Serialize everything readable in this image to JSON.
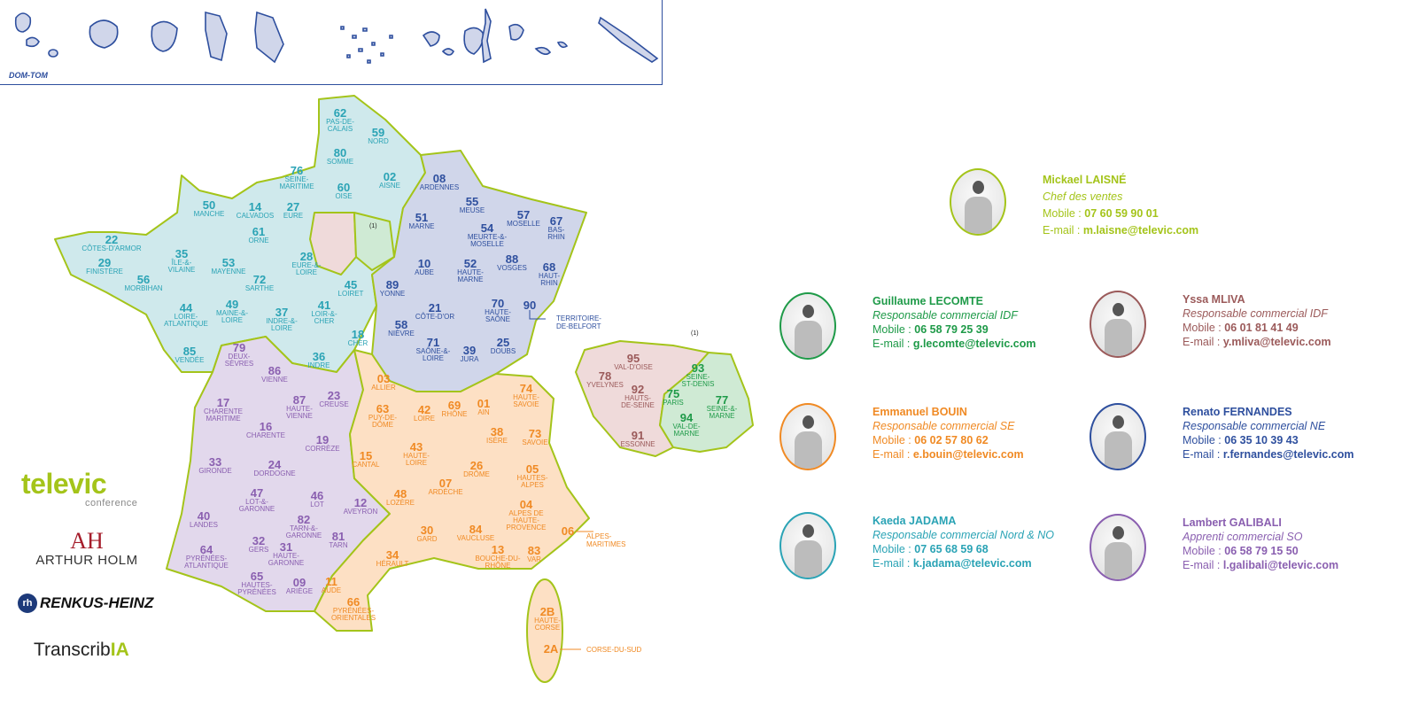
{
  "domtom": {
    "label": "DOM-TOM"
  },
  "colors": {
    "chef": "#a4c41a",
    "nord_no": "#2aa3b5",
    "ne": "#2e4f9e",
    "se": "#f08a24",
    "so": "#8a5fb0",
    "idf_green": "#1e9a48",
    "idf_mauve": "#9b5a5a"
  },
  "map": {
    "note_marker": "(1)",
    "annotations": {
      "belfort": "TERRITOIRE-\nDE-BELFORT",
      "alpes_maritimes": "ALPES-\nMARITIMES",
      "corse_du_sud": "CORSE-DU-SUD"
    },
    "departments": [
      {
        "num": "62",
        "name": "PAS-DE-\nCALAIS",
        "zone": "nord_no"
      },
      {
        "num": "59",
        "name": "NORD",
        "zone": "nord_no"
      },
      {
        "num": "80",
        "name": "SOMME",
        "zone": "nord_no"
      },
      {
        "num": "02",
        "name": "AISNE",
        "zone": "nord_no"
      },
      {
        "num": "60",
        "name": "OISE",
        "zone": "nord_no"
      },
      {
        "num": "76",
        "name": "SEINE-\nMARITIME",
        "zone": "nord_no"
      },
      {
        "num": "50",
        "name": "MANCHE",
        "zone": "nord_no"
      },
      {
        "num": "14",
        "name": "CALVADOS",
        "zone": "nord_no"
      },
      {
        "num": "27",
        "name": "EURE",
        "zone": "nord_no"
      },
      {
        "num": "61",
        "name": "ORNE",
        "zone": "nord_no"
      },
      {
        "num": "22",
        "name": "CÔTES-D'ARMOR",
        "zone": "nord_no"
      },
      {
        "num": "29",
        "name": "FINISTÈRE",
        "zone": "nord_no"
      },
      {
        "num": "35",
        "name": "ÎLE-&-\nVILAINE",
        "zone": "nord_no"
      },
      {
        "num": "56",
        "name": "MORBIHAN",
        "zone": "nord_no"
      },
      {
        "num": "53",
        "name": "MAYENNE",
        "zone": "nord_no"
      },
      {
        "num": "72",
        "name": "SARTHE",
        "zone": "nord_no"
      },
      {
        "num": "28",
        "name": "EURE-&-\nLOIRE",
        "zone": "nord_no"
      },
      {
        "num": "45",
        "name": "LOIRET",
        "zone": "nord_no"
      },
      {
        "num": "44",
        "name": "LOIRE-\nATLANTIQUE",
        "zone": "nord_no"
      },
      {
        "num": "49",
        "name": "MAINE-&-\nLOIRE",
        "zone": "nord_no"
      },
      {
        "num": "37",
        "name": "INDRE-&-\nLOIRE",
        "zone": "nord_no"
      },
      {
        "num": "41",
        "name": "LOIR-&-\nCHER",
        "zone": "nord_no"
      },
      {
        "num": "18",
        "name": "CHER",
        "zone": "nord_no"
      },
      {
        "num": "85",
        "name": "VENDÉE",
        "zone": "nord_no"
      },
      {
        "num": "36",
        "name": "INDRE",
        "zone": "nord_no"
      },
      {
        "num": "08",
        "name": "ARDENNES",
        "zone": "ne"
      },
      {
        "num": "55",
        "name": "MEUSE",
        "zone": "ne"
      },
      {
        "num": "57",
        "name": "MOSELLE",
        "zone": "ne"
      },
      {
        "num": "67",
        "name": "BAS-\nRHIN",
        "zone": "ne"
      },
      {
        "num": "51",
        "name": "MARNE",
        "zone": "ne"
      },
      {
        "num": "54",
        "name": "MEURTE-&-\nMOSELLE",
        "zone": "ne"
      },
      {
        "num": "52",
        "name": "HAUTE-\nMARNE",
        "zone": "ne"
      },
      {
        "num": "88",
        "name": "VOSGES",
        "zone": "ne"
      },
      {
        "num": "10",
        "name": "AUBE",
        "zone": "ne"
      },
      {
        "num": "68",
        "name": "HAUT-\nRHIN",
        "zone": "ne"
      },
      {
        "num": "89",
        "name": "YONNE",
        "zone": "ne"
      },
      {
        "num": "21",
        "name": "CÔTE-D'OR",
        "zone": "ne"
      },
      {
        "num": "70",
        "name": "HAUTE-\nSAÔNE",
        "zone": "ne"
      },
      {
        "num": "90",
        "name": "",
        "zone": "ne"
      },
      {
        "num": "58",
        "name": "NIÈVRE",
        "zone": "ne"
      },
      {
        "num": "71",
        "name": "SAÔNE-&-\nLOIRE",
        "zone": "ne"
      },
      {
        "num": "39",
        "name": "JURA",
        "zone": "ne"
      },
      {
        "num": "25",
        "name": "DOUBS",
        "zone": "ne"
      },
      {
        "num": "79",
        "name": "DEUX-\nSÈVRES",
        "zone": "so"
      },
      {
        "num": "86",
        "name": "VIENNE",
        "zone": "so"
      },
      {
        "num": "87",
        "name": "HAUTE-\nVIENNE",
        "zone": "so"
      },
      {
        "num": "23",
        "name": "CREUSE",
        "zone": "so"
      },
      {
        "num": "17",
        "name": "CHARENTE\nMARITIME",
        "zone": "so"
      },
      {
        "num": "16",
        "name": "CHARENTE",
        "zone": "so"
      },
      {
        "num": "19",
        "name": "CORRÈZE",
        "zone": "so"
      },
      {
        "num": "33",
        "name": "GIRONDE",
        "zone": "so"
      },
      {
        "num": "24",
        "name": "DORDOGNE",
        "zone": "so"
      },
      {
        "num": "47",
        "name": "LOT-&-\nGARONNE",
        "zone": "so"
      },
      {
        "num": "46",
        "name": "LOT",
        "zone": "so"
      },
      {
        "num": "12",
        "name": "AVEYRON",
        "zone": "so"
      },
      {
        "num": "40",
        "name": "LANDES",
        "zone": "so"
      },
      {
        "num": "82",
        "name": "TARN-&-\nGARONNE",
        "zone": "so"
      },
      {
        "num": "81",
        "name": "TARN",
        "zone": "so"
      },
      {
        "num": "64",
        "name": "PYRÉNÉES-\nATLANTIQUE",
        "zone": "so"
      },
      {
        "num": "32",
        "name": "GERS",
        "zone": "so"
      },
      {
        "num": "31",
        "name": "HAUTE-\nGARONNE",
        "zone": "so"
      },
      {
        "num": "65",
        "name": "HAUTES-\nPYRÉNÉES",
        "zone": "so"
      },
      {
        "num": "09",
        "name": "ARIÈGE",
        "zone": "so"
      },
      {
        "num": "03",
        "name": "ALLIER",
        "zone": "se"
      },
      {
        "num": "63",
        "name": "PUY-DE-\nDÔME",
        "zone": "se"
      },
      {
        "num": "42",
        "name": "LOIRE",
        "zone": "se"
      },
      {
        "num": "69",
        "name": "RHÔNE",
        "zone": "se"
      },
      {
        "num": "01",
        "name": "AIN",
        "zone": "se"
      },
      {
        "num": "74",
        "name": "HAUTE-\nSAVOIE",
        "zone": "se"
      },
      {
        "num": "38",
        "name": "ISÈRE",
        "zone": "se"
      },
      {
        "num": "73",
        "name": "SAVOIE",
        "zone": "se"
      },
      {
        "num": "15",
        "name": "CANTAL",
        "zone": "se"
      },
      {
        "num": "43",
        "name": "HAUTE-\nLOIRE",
        "zone": "se"
      },
      {
        "num": "26",
        "name": "DRÔME",
        "zone": "se"
      },
      {
        "num": "07",
        "name": "ARDÈCHE",
        "zone": "se"
      },
      {
        "num": "05",
        "name": "HAUTES-\nALPES",
        "zone": "se"
      },
      {
        "num": "48",
        "name": "LOZÈRE",
        "zone": "se"
      },
      {
        "num": "04",
        "name": "ALPES DE\nHAUTE-\nPROVENCE",
        "zone": "se"
      },
      {
        "num": "06",
        "name": "",
        "zone": "se"
      },
      {
        "num": "30",
        "name": "GARD",
        "zone": "se"
      },
      {
        "num": "84",
        "name": "VAUCLUSE",
        "zone": "se"
      },
      {
        "num": "13",
        "name": "BOUCHE-DU-\nRHÔNE",
        "zone": "se"
      },
      {
        "num": "83",
        "name": "VAR",
        "zone": "se"
      },
      {
        "num": "34",
        "name": "HÉRAULT",
        "zone": "se"
      },
      {
        "num": "11",
        "name": "AUDE",
        "zone": "se"
      },
      {
        "num": "66",
        "name": "PYRÉNÉES-\nORIENTALES",
        "zone": "se"
      },
      {
        "num": "2B",
        "name": "HAUTE-\nCORSE",
        "zone": "se"
      },
      {
        "num": "2A",
        "name": "",
        "zone": "se"
      },
      {
        "num": "95",
        "name": "VAL-D'OISE",
        "zone": "idf_mauve"
      },
      {
        "num": "78",
        "name": "YVELYNES",
        "zone": "idf_mauve"
      },
      {
        "num": "92",
        "name": "HAUTS-\nDE-SEINE",
        "zone": "idf_mauve"
      },
      {
        "num": "91",
        "name": "ESSONNE",
        "zone": "idf_mauve"
      },
      {
        "num": "93",
        "name": "SEINE-\nST-DENIS",
        "zone": "idf_green"
      },
      {
        "num": "75",
        "name": "PARIS",
        "zone": "idf_green"
      },
      {
        "num": "77",
        "name": "SEINE-&-\nMARNE",
        "zone": "idf_green"
      },
      {
        "num": "94",
        "name": "VAL-DE-\nMARNE",
        "zone": "idf_green"
      }
    ]
  },
  "contact_labels": {
    "mobile": "Mobile : ",
    "email": "E-mail : "
  },
  "contacts": [
    {
      "name": "Mickael LAISNÉ",
      "role": "Chef des ventes",
      "mobile": "07 60 59 90 01",
      "email": "m.laisne@televic.com",
      "color": "#a4c41a"
    },
    {
      "name": "Guillaume LECOMTE",
      "role": "Responsable commercial IDF",
      "mobile": "06 58 79 25 39",
      "email": "g.lecomte@televic.com",
      "color": "#1e9a48"
    },
    {
      "name": "Yssa MLIVA",
      "role": "Responsable commercial IDF",
      "mobile": "06 01 81 41 49",
      "email": "y.mliva@televic.com",
      "color": "#9b5a5a"
    },
    {
      "name": "Emmanuel BOUIN",
      "role": "Responsable commercial SE",
      "mobile": "06 02 57 80 62",
      "email": "e.bouin@televic.com",
      "color": "#f08a24"
    },
    {
      "name": "Renato FERNANDES",
      "role": "Responsable commercial NE",
      "mobile": "06 35 10 39 43",
      "email": "r.fernandes@televic.com",
      "color": "#2e4f9e"
    },
    {
      "name": "Kaeda JADAMA",
      "role": "Responsable commercial Nord & NO",
      "mobile": "07 65 68 59 68",
      "email": "k.jadama@televic.com",
      "color": "#2aa3b5"
    },
    {
      "name": "Lambert GALIBALI",
      "role": "Apprenti commercial SO",
      "mobile": "06 58 79 15 50",
      "email": "l.galibali@televic.com",
      "color": "#8a5fb0"
    }
  ],
  "logos": {
    "televic": "televic",
    "televic_sub": "conference",
    "arthur_holm_mark": "AH",
    "arthur_holm": "ARTHUR HOLM",
    "renkus_mark": "rh",
    "renkus": "RENKUS-HEINZ",
    "transcribia_a": "Transcrib",
    "transcribia_b": "IA"
  }
}
